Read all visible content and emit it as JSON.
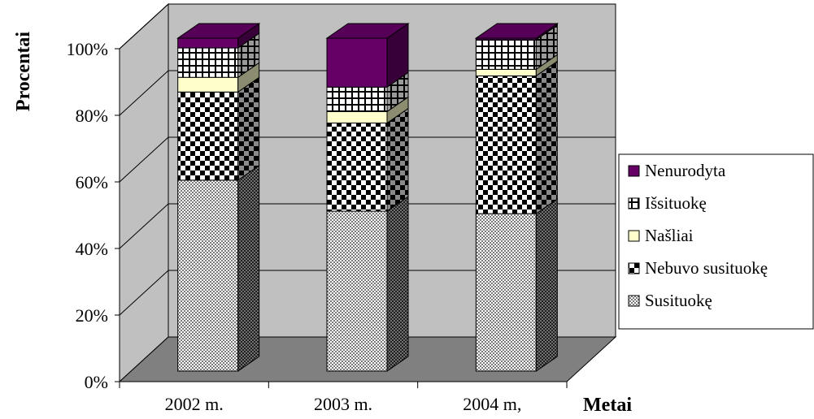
{
  "chart_data": {
    "type": "bar",
    "stacked": true,
    "percent_stacked": true,
    "three_d": true,
    "categories": [
      "2002 m.",
      "2003 m.",
      "2004 m,"
    ],
    "series": [
      {
        "name": "Susituokę",
        "values": [
          58.5,
          49,
          48
        ],
        "color": "#c8c8c8",
        "pattern": "fine-check"
      },
      {
        "name": "Nebuvo susituokę",
        "values": [
          27,
          27,
          42
        ],
        "color": "#000000",
        "pattern": "checkerboard"
      },
      {
        "name": "Našliai",
        "values": [
          4.5,
          3.5,
          2
        ],
        "color": "#ffffcc",
        "pattern": "solid"
      },
      {
        "name": "Išsituokę",
        "values": [
          9,
          7.5,
          9
        ],
        "color": "#ffffff",
        "pattern": "grid"
      },
      {
        "name": "Nenurodyta",
        "values": [
          3,
          15,
          0.5
        ],
        "color": "#660066",
        "pattern": "solid"
      }
    ],
    "ylabel": "Procentai",
    "xlabel": "Metai",
    "yticks": [
      "0%",
      "20%",
      "40%",
      "60%",
      "80%",
      "100%"
    ],
    "ylim": [
      0,
      100
    ],
    "grid": true,
    "legend_position": "right",
    "wall_color": "#c0c0c0",
    "floor_color": "#808080"
  }
}
